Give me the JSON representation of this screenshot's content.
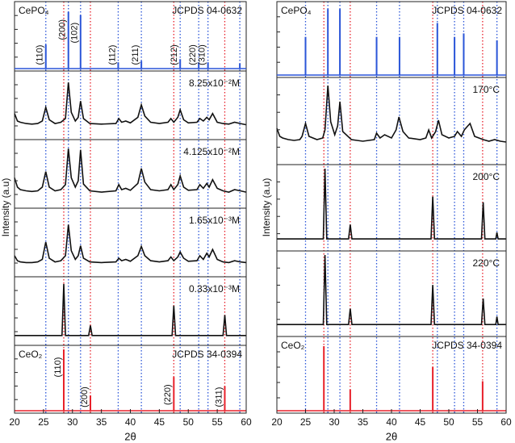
{
  "chart_data": [
    {
      "type": "stacked-xrd",
      "xlabel": "2θ",
      "ylabel": "Intensity (a.u)",
      "xlim": [
        20,
        60
      ],
      "xticks": [
        20,
        25,
        30,
        35,
        40,
        45,
        50,
        55,
        60
      ],
      "panels": [
        {
          "type": "stick",
          "label": "CePO₄",
          "reference": "JCPDS 04-0632",
          "color": "#2a55d8",
          "guides": true,
          "ylim": [
            0,
            100
          ],
          "x": [
            25.4,
            29.3,
            31.4,
            37.9,
            41.9,
            48.6,
            51.8,
            53.4,
            58.9
          ],
          "values": [
            38,
            90,
            85,
            10,
            12,
            15,
            10,
            10,
            8
          ],
          "labels": [
            "(110)",
            "(200)",
            "(102)",
            "(112)",
            "(211)",
            "(212)",
            "(220)",
            "(310)",
            null
          ]
        },
        {
          "type": "line",
          "label": "8.25x10⁻²M",
          "color": "#111111",
          "ylim": [
            0,
            100
          ],
          "x": [
            20,
            20.5,
            21,
            22,
            23,
            24,
            24.8,
            25.4,
            26,
            27,
            28,
            28.8,
            29.3,
            29.8,
            30.5,
            31,
            31.4,
            31.9,
            33,
            35,
            37.5,
            38,
            38.5,
            39.2,
            40,
            41.3,
            41.9,
            42.5,
            43.5,
            45,
            46.5,
            47,
            47.5,
            48.2,
            48.6,
            49.2,
            50,
            51.5,
            52,
            52.6,
            53.2,
            53.6,
            54.2,
            55,
            56,
            57,
            58,
            59,
            60
          ],
          "values": [
            38,
            26,
            24,
            22,
            21,
            22,
            26,
            48,
            28,
            22,
            24,
            30,
            88,
            40,
            26,
            32,
            58,
            30,
            22,
            21,
            22,
            30,
            24,
            26,
            23,
            32,
            52,
            34,
            24,
            22,
            24,
            30,
            24,
            32,
            44,
            28,
            23,
            24,
            30,
            26,
            32,
            28,
            38,
            24,
            22,
            21,
            24,
            22,
            20
          ]
        },
        {
          "type": "line",
          "label": "4.125x10⁻²M",
          "color": "#111111",
          "ylim": [
            0,
            100
          ],
          "x": [
            20,
            20.5,
            21,
            22,
            23,
            24,
            24.8,
            25.4,
            26,
            27,
            28,
            28.8,
            29.3,
            29.8,
            30.5,
            31,
            31.4,
            31.9,
            33,
            35,
            37.5,
            38,
            38.5,
            39.2,
            40,
            41.3,
            41.9,
            42.5,
            43.5,
            45,
            46.5,
            47,
            47.5,
            48.2,
            48.6,
            49.2,
            50,
            51.5,
            52,
            52.6,
            53.2,
            53.6,
            54.2,
            55,
            56,
            57,
            58,
            59,
            60
          ],
          "values": [
            45,
            30,
            26,
            24,
            23,
            24,
            30,
            55,
            30,
            24,
            26,
            34,
            92,
            45,
            30,
            40,
            90,
            35,
            24,
            22,
            24,
            34,
            26,
            28,
            25,
            36,
            60,
            38,
            26,
            24,
            26,
            34,
            26,
            34,
            48,
            30,
            25,
            26,
            34,
            28,
            36,
            30,
            42,
            28,
            24,
            22,
            26,
            24,
            22
          ]
        },
        {
          "type": "line",
          "label": "1.65x10⁻³M",
          "color": "#111111",
          "ylim": [
            0,
            100
          ],
          "x": [
            20,
            20.5,
            21,
            22,
            23,
            24,
            24.8,
            25.4,
            26,
            27,
            28,
            28.8,
            29.3,
            29.8,
            30.5,
            31,
            31.4,
            31.9,
            33,
            35,
            37.5,
            38,
            38.5,
            39.2,
            40,
            41.3,
            41.9,
            42.5,
            43.5,
            45,
            46.5,
            47,
            47.5,
            48.2,
            48.6,
            49.2,
            50,
            51.5,
            52,
            52.6,
            53.2,
            53.6,
            54.2,
            55,
            56,
            57,
            58,
            59,
            60
          ],
          "values": [
            30,
            22,
            20,
            19,
            19,
            20,
            24,
            52,
            26,
            20,
            22,
            30,
            80,
            38,
            24,
            30,
            46,
            26,
            20,
            19,
            20,
            26,
            22,
            24,
            21,
            30,
            45,
            30,
            22,
            20,
            22,
            28,
            22,
            28,
            36,
            26,
            21,
            22,
            30,
            24,
            34,
            28,
            40,
            24,
            20,
            19,
            22,
            20,
            19
          ]
        },
        {
          "type": "line",
          "label": "0.33x10⁻³M",
          "color": "#111111",
          "ylim": [
            0,
            100
          ],
          "x": [
            20,
            28.2,
            28.5,
            28.8,
            32.8,
            33.1,
            33.4,
            47.2,
            47.5,
            47.8,
            56,
            56.3,
            56.6,
            60
          ],
          "values": [
            12,
            12,
            95,
            12,
            12,
            28,
            12,
            12,
            60,
            12,
            12,
            45,
            12,
            12
          ]
        },
        {
          "type": "stick",
          "label": "CeO₂",
          "reference": "JCPDS 34-0394",
          "color": "#e8202a",
          "guides": true,
          "ylim": [
            0,
            100
          ],
          "x": [
            28.5,
            33.1,
            47.5,
            56.3
          ],
          "values": [
            100,
            25,
            55,
            40
          ],
          "labels": [
            "(110)",
            "(200)",
            "(220)",
            "(311)"
          ]
        }
      ]
    },
    {
      "type": "stacked-xrd",
      "xlabel": "2θ",
      "ylabel": "Intensity (a.u)",
      "xlim": [
        20,
        60
      ],
      "xticks": [
        20,
        25,
        30,
        35,
        40,
        45,
        50,
        55,
        60
      ],
      "panels": [
        {
          "type": "stick",
          "label": "CePO₄",
          "reference": "JCPDS 04-0632",
          "color": "#2a55d8",
          "guides": true,
          "ylim": [
            0,
            100
          ],
          "x": [
            25,
            28.9,
            31,
            37.4,
            41.4,
            48,
            51,
            52.6,
            58.4
          ],
          "values": [
            55,
            95,
            95,
            55,
            55,
            75,
            55,
            60,
            50
          ]
        },
        {
          "type": "line",
          "label": "170°C",
          "color": "#111111",
          "ylim": [
            0,
            100
          ],
          "x": [
            20,
            20.5,
            21,
            22,
            23,
            24,
            24.4,
            25,
            25.6,
            27,
            28,
            28.4,
            28.9,
            29.4,
            30.1,
            30.6,
            31,
            31.5,
            33,
            35,
            37,
            37.4,
            38,
            38.8,
            40,
            40.8,
            41.3,
            42,
            43,
            45,
            46,
            46.5,
            47,
            47.7,
            48.2,
            48.8,
            50,
            51,
            51.5,
            52.2,
            52.7,
            53.2,
            53.7,
            54.5,
            56,
            57,
            58,
            59,
            60
          ],
          "values": [
            42,
            32,
            30,
            28,
            27,
            28,
            32,
            48,
            32,
            28,
            30,
            40,
            95,
            50,
            34,
            45,
            75,
            38,
            28,
            26,
            28,
            36,
            30,
            34,
            30,
            40,
            56,
            38,
            30,
            28,
            30,
            40,
            30,
            38,
            52,
            34,
            30,
            32,
            38,
            32,
            40,
            44,
            48,
            32,
            28,
            26,
            28,
            26,
            25
          ]
        },
        {
          "type": "line",
          "label": "200°C",
          "color": "#111111",
          "ylim": [
            0,
            100
          ],
          "x": [
            20,
            28.1,
            28.4,
            28.7,
            32.5,
            32.8,
            33.1,
            46.9,
            47.2,
            47.5,
            55.7,
            56,
            56.3,
            58.2,
            58.4,
            58.6,
            60
          ],
          "values": [
            12,
            12,
            100,
            12,
            12,
            30,
            12,
            12,
            65,
            12,
            12,
            58,
            12,
            12,
            20,
            12,
            12
          ]
        },
        {
          "type": "line",
          "label": "220°C",
          "color": "#111111",
          "ylim": [
            0,
            100
          ],
          "x": [
            20,
            28.1,
            28.4,
            28.7,
            32.5,
            32.8,
            33.1,
            46.9,
            47.2,
            47.5,
            55.7,
            56,
            56.3,
            58.2,
            58.4,
            58.6,
            60
          ],
          "values": [
            12,
            12,
            100,
            12,
            12,
            32,
            12,
            12,
            62,
            12,
            12,
            45,
            12,
            12,
            22,
            12,
            12
          ]
        },
        {
          "type": "stick",
          "label": "CeO₂",
          "reference": "JCPDS 34-0394",
          "color": "#e8202a",
          "guides": true,
          "ylim": [
            0,
            100
          ],
          "x": [
            28.2,
            32.8,
            47.2,
            55.9
          ],
          "values": [
            92,
            30,
            62,
            42
          ]
        }
      ]
    }
  ]
}
